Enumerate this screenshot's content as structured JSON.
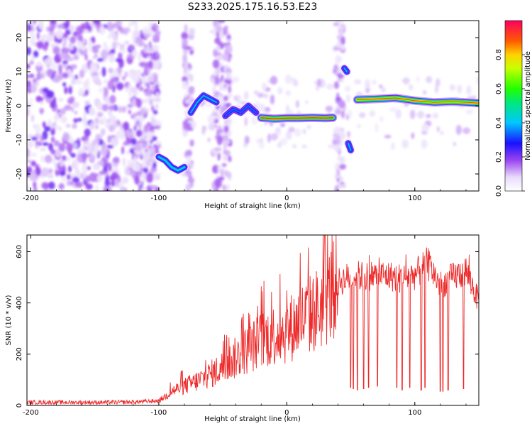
{
  "title": "S233.2025.175.16.53.E23",
  "colors": {
    "spectrogram_low": "#ede4fa",
    "spectrogram_mid": "#7a28e6",
    "snr_line": "#ee2b2b"
  },
  "chart_data": [
    {
      "type": "heatmap",
      "xlabel": "Height of straight line (km)",
      "ylabel": "Frequency (Hz)",
      "xlim": [
        -203,
        150
      ],
      "ylim": [
        -25,
        25
      ],
      "xticks": [
        "-200",
        "-100",
        "0",
        "100"
      ],
      "yticks": [
        "20",
        "10",
        "0",
        "-10",
        "-20"
      ],
      "colorbar": {
        "label": "Normalized spectral amplitude",
        "range": [
          0,
          1
        ],
        "ticks": [
          "0.8",
          "0.6",
          "0.4",
          "0.2",
          "0.0"
        ],
        "colormap": "white-purple-blue-cyan-green-yellow-red"
      },
      "tracks": [
        {
          "x": [
            -100,
            -95,
            -90,
            -85,
            -80
          ],
          "y": [
            -15,
            -16,
            -18,
            -19,
            -18
          ],
          "peak": 0.45
        },
        {
          "x": [
            -75,
            -70,
            -65,
            -60,
            -55
          ],
          "y": [
            -2,
            1,
            3,
            2,
            1
          ],
          "peak": 0.4
        },
        {
          "x": [
            -48,
            -42,
            -36,
            -30,
            -24
          ],
          "y": [
            -3,
            -1,
            -2,
            0,
            -2
          ],
          "peak": 0.35
        },
        {
          "x": [
            -20,
            -10,
            0,
            10,
            20,
            30,
            36
          ],
          "y": [
            -3.5,
            -3.8,
            -3.6,
            -3.6,
            -3.5,
            -3.6,
            -3.5
          ],
          "peak": 0.95
        },
        {
          "x": [
            45,
            47
          ],
          "y": [
            11,
            10
          ],
          "peak": 0.4
        },
        {
          "x": [
            48,
            50
          ],
          "y": [
            -11,
            -13
          ],
          "peak": 0.4
        },
        {
          "x": [
            55,
            70,
            85,
            100,
            115,
            130,
            150
          ],
          "y": [
            1.8,
            2.0,
            2.3,
            1.5,
            1.0,
            1.2,
            0.8
          ],
          "peak": 0.9
        }
      ]
    },
    {
      "type": "line",
      "xlabel": "Height of straight line (km)",
      "ylabel": "SNR (10 * v/v)",
      "xlim": [
        -203,
        150
      ],
      "ylim": [
        0,
        665
      ],
      "xticks": [
        "-200",
        "-100",
        "0",
        "100"
      ],
      "yticks": [
        "600",
        "400",
        "200",
        "0"
      ],
      "series": [
        {
          "x": [
            -203,
            -180,
            -160,
            -140,
            -120,
            -100,
            -95,
            -90,
            -80,
            -70,
            -60,
            -50,
            -40,
            -30,
            -20,
            -10,
            0,
            10,
            20,
            30,
            40,
            50,
            60,
            70,
            80,
            90,
            100,
            110,
            120,
            130,
            140,
            150
          ],
          "values": [
            12,
            12,
            12,
            12,
            13,
            18,
            35,
            55,
            75,
            95,
            120,
            150,
            185,
            220,
            255,
            275,
            290,
            330,
            360,
            400,
            480,
            505,
            505,
            510,
            505,
            495,
            510,
            555,
            470,
            500,
            525,
            405
          ]
        }
      ],
      "dropouts": [
        {
          "x": 50,
          "y": 70
        },
        {
          "x": 52,
          "y": 65
        },
        {
          "x": 55,
          "y": 60
        },
        {
          "x": 60,
          "y": 65
        },
        {
          "x": 64,
          "y": 70
        },
        {
          "x": 71,
          "y": 75
        },
        {
          "x": 86,
          "y": 70
        },
        {
          "x": 90,
          "y": 60
        },
        {
          "x": 96,
          "y": 70
        },
        {
          "x": 105,
          "y": 60
        },
        {
          "x": 108,
          "y": 70
        },
        {
          "x": 120,
          "y": 55
        },
        {
          "x": 122,
          "y": 55
        },
        {
          "x": 126,
          "y": 60
        },
        {
          "x": 138,
          "y": 65
        }
      ]
    }
  ]
}
